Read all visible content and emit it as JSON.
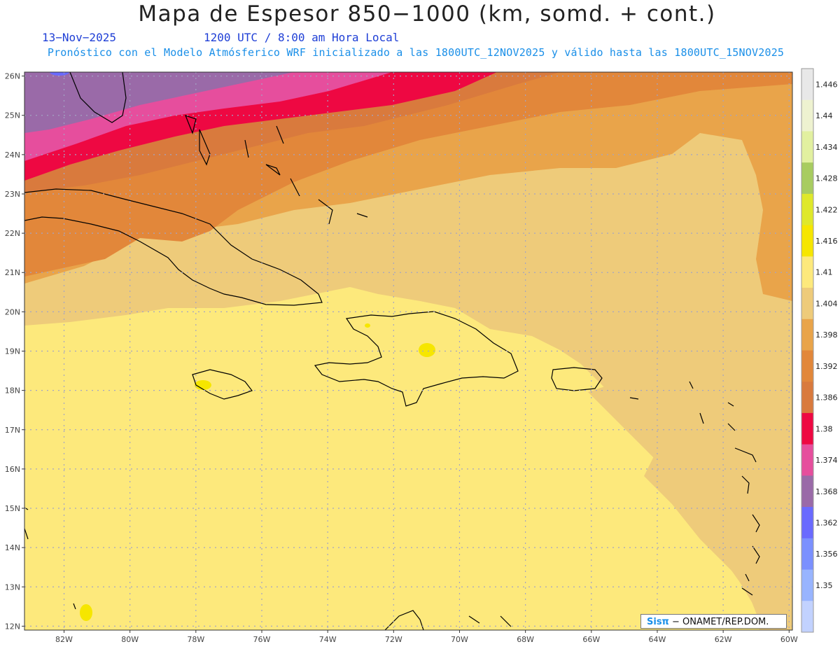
{
  "title": "Mapa de Espesor 850−1000 (km, somd. + cont.)",
  "date": "13−Nov−2025",
  "time": "1200 UTC / 8:00 am Hora Local",
  "description": "Pronóstico con el Modelo Atmósferico WRF inicializado a las 1800UTC_12NOV2025 y válido hasta las  1800UTC_15NOV2025",
  "credit": {
    "logo": "Sisπ",
    "text": "− ONAMET/REP.DOM."
  },
  "map": {
    "lon_range": [
      -83.2,
      -59.9
    ],
    "lat_range": [
      11.9,
      26.1
    ],
    "lat_ticks": [
      "26N",
      "25N",
      "24N",
      "23N",
      "22N",
      "21N",
      "20N",
      "19N",
      "18N",
      "17N",
      "16N",
      "15N",
      "14N",
      "13N",
      "12N"
    ],
    "lon_ticks": [
      "82W",
      "80W",
      "78W",
      "76W",
      "74W",
      "72W",
      "70W",
      "68W",
      "66W",
      "64W",
      "62W",
      "60W"
    ],
    "grid": true,
    "coastline_color": "#000000"
  },
  "colorbar": {
    "labels": [
      "1.446",
      "1.44",
      "1.434",
      "1.428",
      "1.422",
      "1.416",
      "1.41",
      "1.404",
      "1.398",
      "1.392",
      "1.386",
      "1.38",
      "1.374",
      "1.368",
      "1.362",
      "1.356",
      "1.35"
    ],
    "colors": [
      "#e8e8e8",
      "#eef2d0",
      "#e2f0a0",
      "#a8cc60",
      "#dfe82a",
      "#f6e600",
      "#fde97c",
      "#eecb7a",
      "#e9a44a",
      "#e2873a",
      "#d97a3d",
      "#ee0842",
      "#e64e9d",
      "#9a6aa8",
      "#6a6aff",
      "#7b90ff",
      "#98b4ff",
      "#c2d2ff"
    ]
  }
}
